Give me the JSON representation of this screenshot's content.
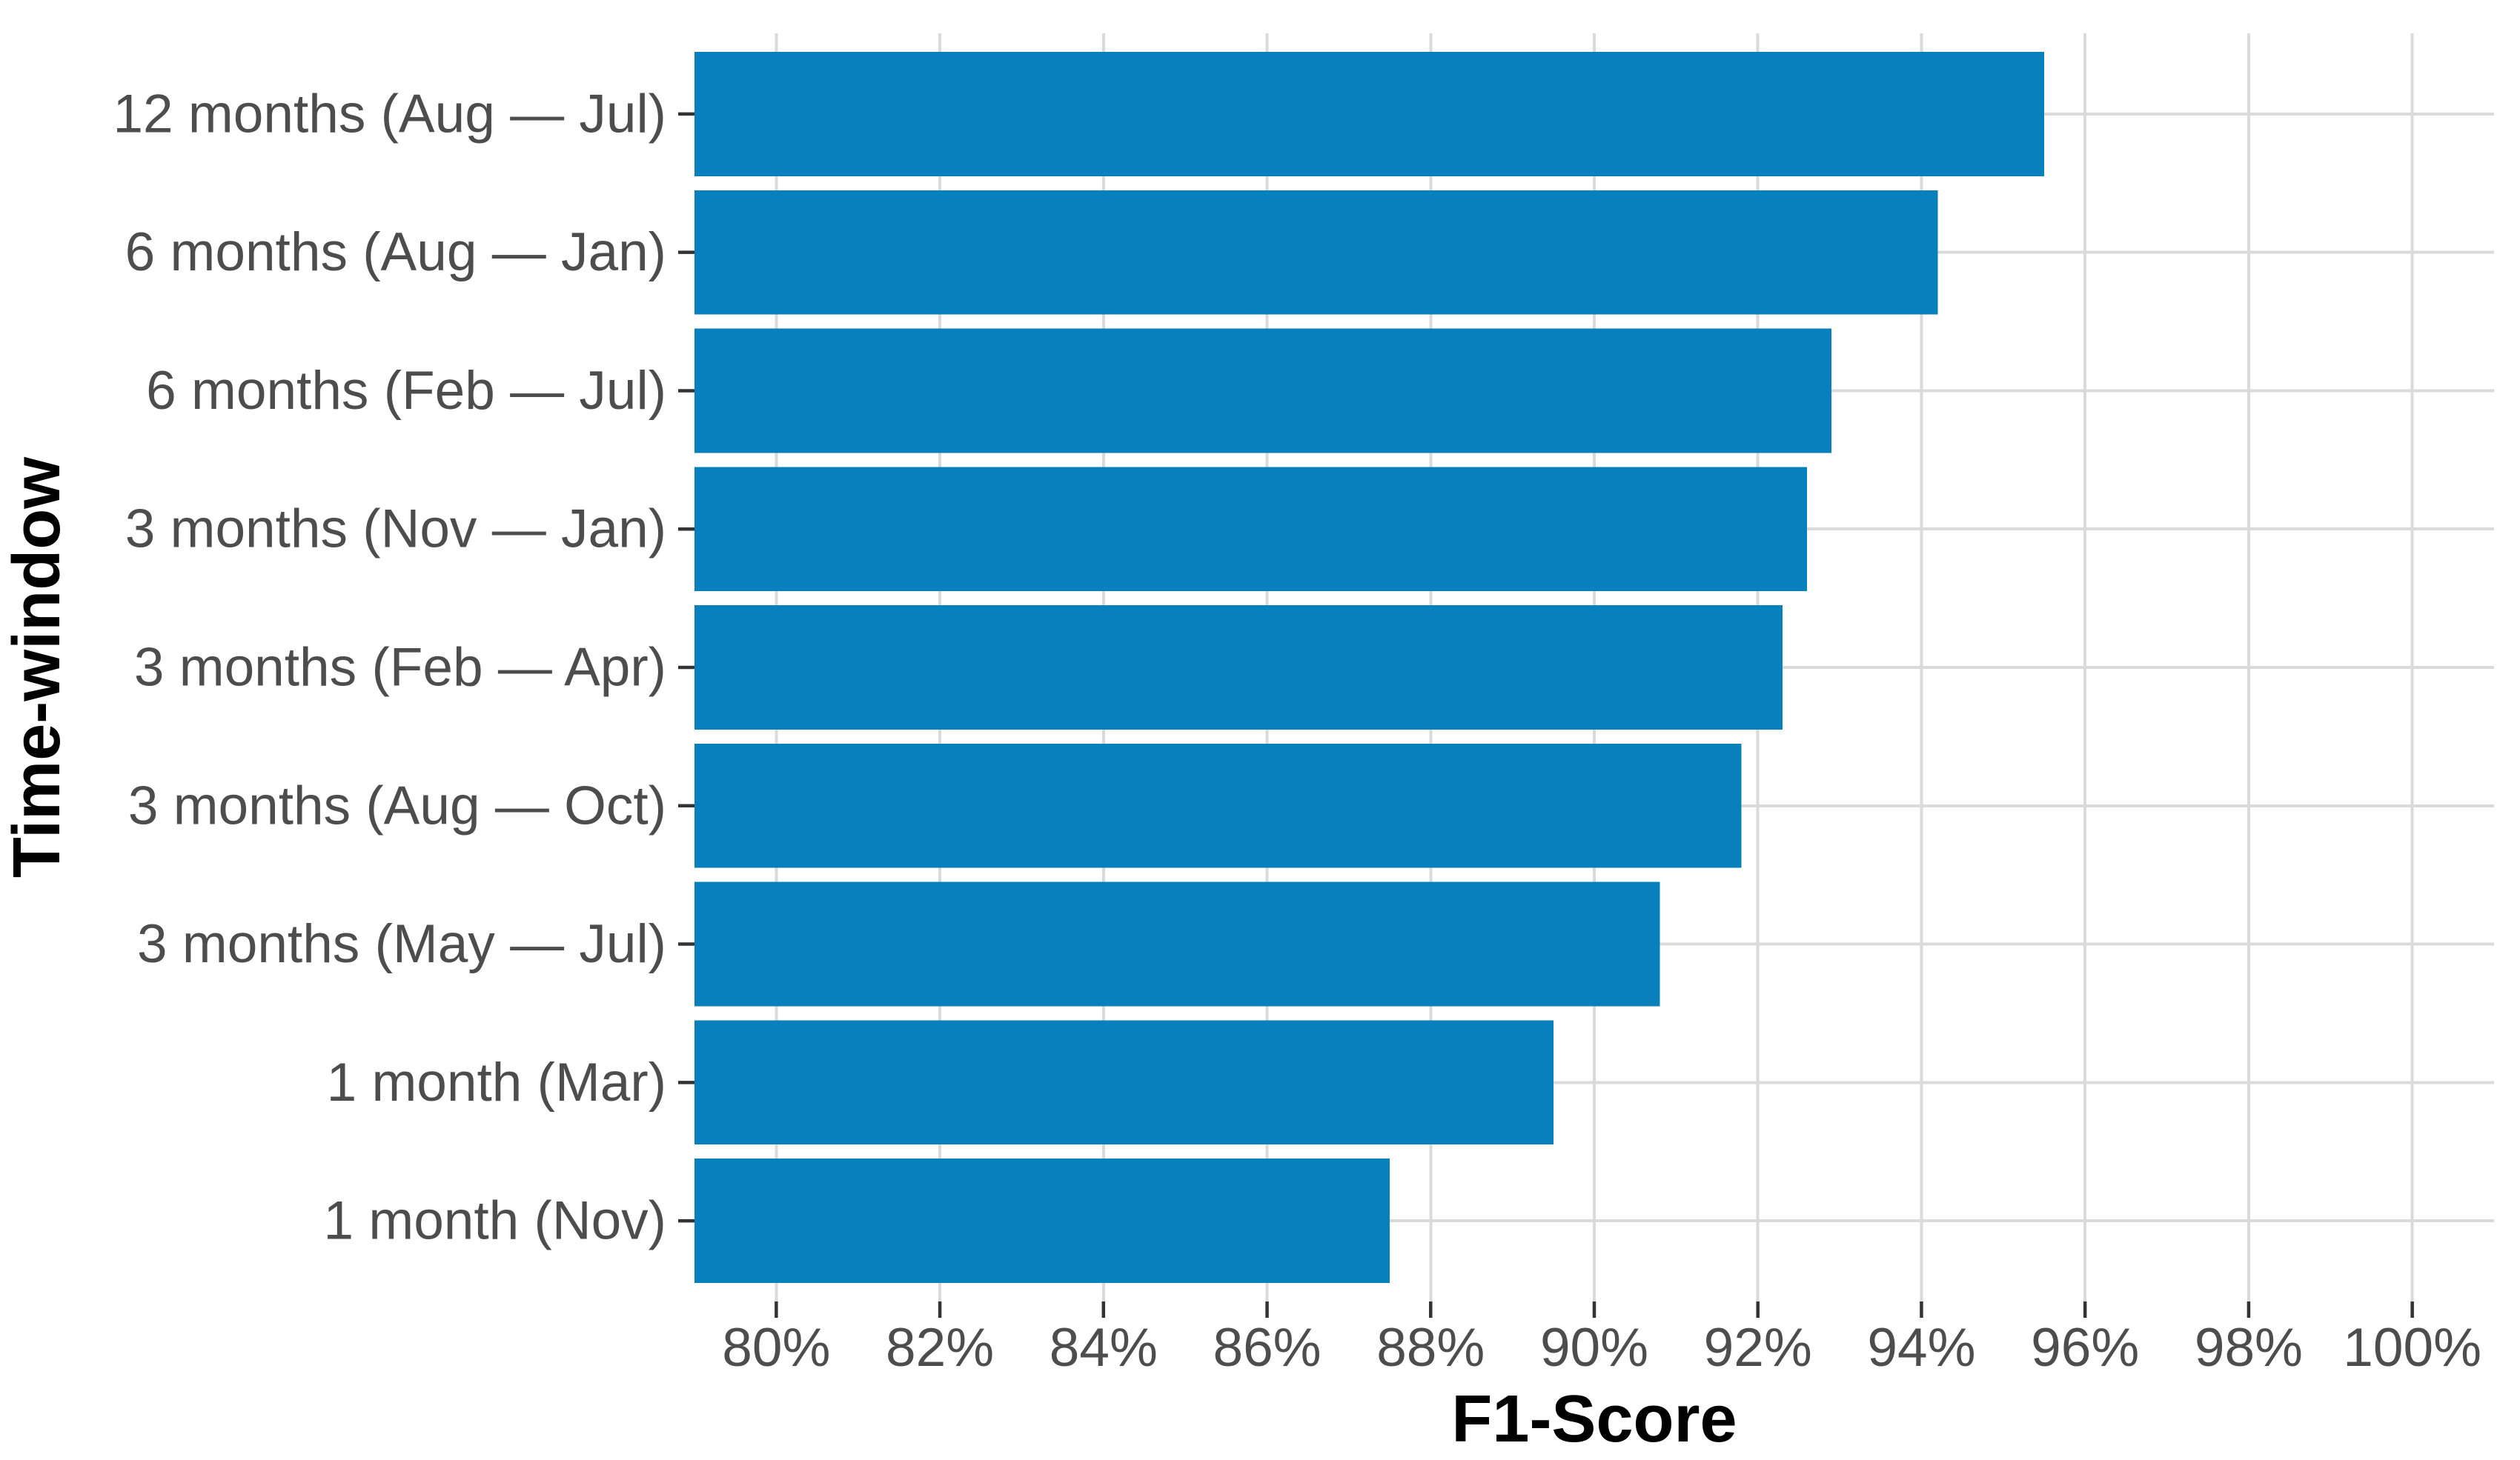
{
  "chart_data": {
    "type": "bar",
    "orientation": "horizontal",
    "title": "",
    "xlabel": "F1-Score",
    "ylabel": "Time-window",
    "categories": [
      "12 months (Aug — Jul)",
      "6 months (Aug — Jan)",
      "6 months (Feb — Jul)",
      "3 months (Nov — Jan)",
      "3 months (Feb — Apr)",
      "3 months (Aug — Oct)",
      "3 months (May — Jul)",
      "1 month (Mar)",
      "1 month (Nov)"
    ],
    "values": [
      95.5,
      94.2,
      92.9,
      92.6,
      92.3,
      91.8,
      90.8,
      89.5,
      87.5
    ],
    "value_unit": "%",
    "xlim": [
      79,
      101
    ],
    "xticks": [
      80,
      82,
      84,
      86,
      88,
      90,
      92,
      94,
      96,
      98,
      100
    ],
    "xtick_labels": [
      "80%",
      "82%",
      "84%",
      "86%",
      "88%",
      "90%",
      "92%",
      "94%",
      "96%",
      "98%",
      "100%"
    ],
    "legend": null,
    "grid": "major-only",
    "bar_color": "#0880bb",
    "gridline_color": "#dadada",
    "tick_mark_color": "#333333",
    "tick_label_color": "#4d4d4d",
    "axis_title_color": "#000000",
    "background_color": "#ffffff"
  }
}
